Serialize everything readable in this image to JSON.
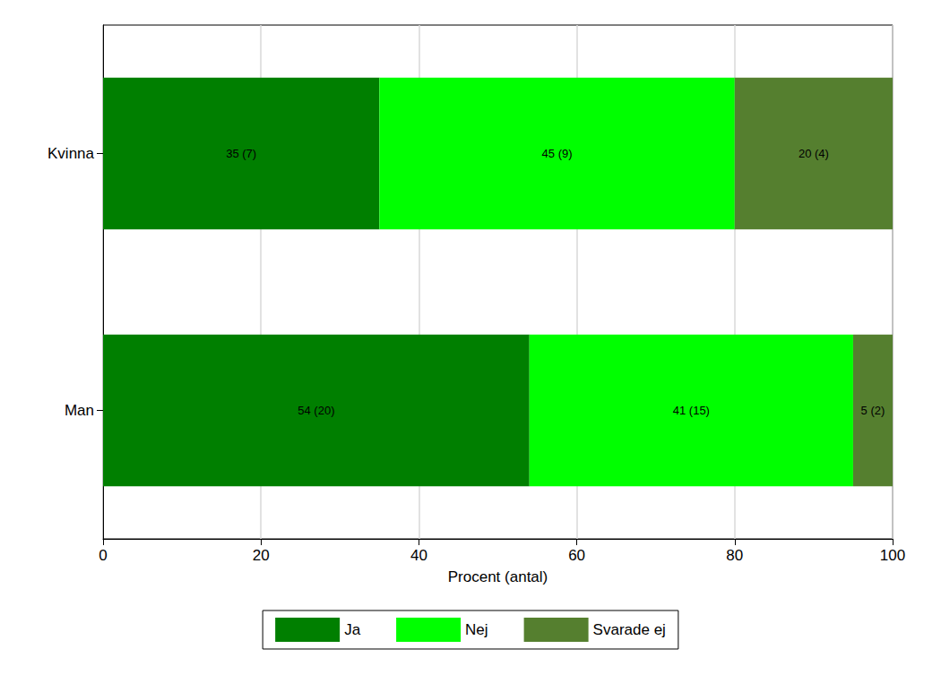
{
  "chart_data": {
    "type": "bar",
    "orientation": "horizontal",
    "stacked": true,
    "data_labels": true,
    "grid": true,
    "legend": "bottom",
    "xlabel": "Procent (antal)",
    "categories": [
      "Kvinna",
      "Man"
    ],
    "xlim": [
      0,
      100
    ],
    "xticks": [
      0,
      20,
      40,
      60,
      80,
      100
    ],
    "series": [
      {
        "name": "Ja",
        "color": "#007f00",
        "values": [
          35,
          54
        ],
        "value_labels": [
          "35 (7)",
          "54 (20)"
        ]
      },
      {
        "name": "Nej",
        "color": "#00ff00",
        "values": [
          45,
          41
        ],
        "value_labels": [
          "45 (9)",
          "41 (15)"
        ]
      },
      {
        "name": "Svarade ej",
        "color": "#557f2f",
        "values": [
          20,
          5
        ],
        "value_labels": [
          "20 (4)",
          "5 (2)"
        ]
      }
    ]
  }
}
